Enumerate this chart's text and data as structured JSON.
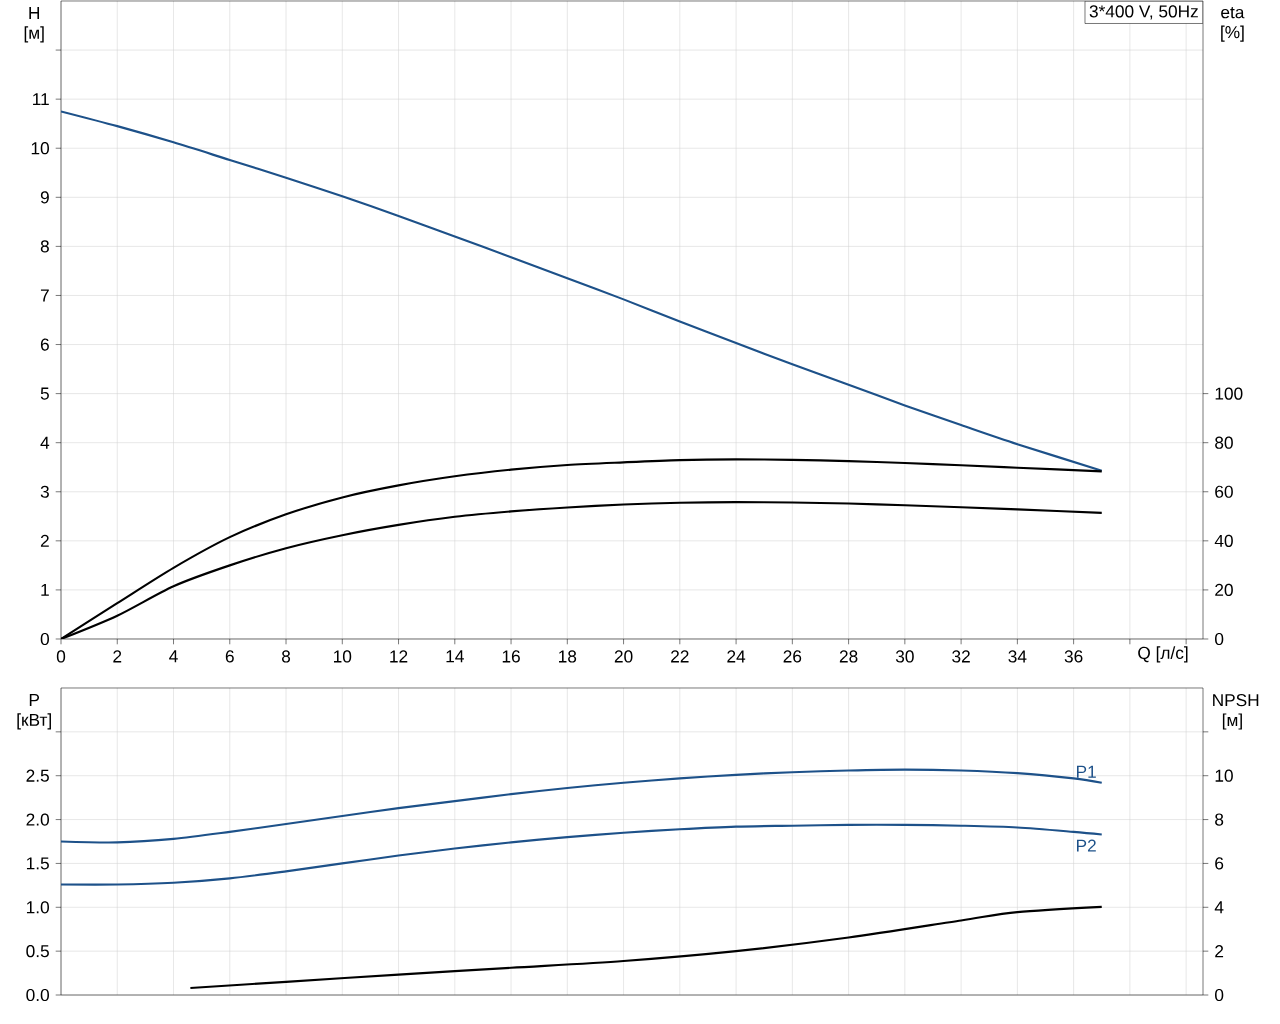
{
  "chart_data": [
    {
      "type": "line",
      "title": "3*400 V, 50Hz",
      "xlabel": "Q [л/с]",
      "ylabel": "H [м]",
      "y2label": "eta [%]",
      "xlim": [
        0,
        40.6
      ],
      "xticks": [
        0,
        2,
        4,
        6,
        8,
        10,
        12,
        14,
        16,
        18,
        20,
        22,
        24,
        26,
        28,
        30,
        32,
        34,
        36,
        {
          "value": 38,
          "label": null
        },
        {
          "value": 40,
          "label": null
        }
      ],
      "ylim": [
        0,
        13
      ],
      "yticks": [
        0,
        1,
        2,
        3,
        4,
        5,
        6,
        7,
        8,
        9,
        10,
        11,
        {
          "value": 12,
          "label": null
        }
      ],
      "y2lim": [
        0,
        260
      ],
      "y2ticks": [
        0,
        20,
        40,
        60,
        80,
        100
      ],
      "grid": true,
      "series": [
        {
          "color": "#1d5189",
          "x": [
            0,
            2,
            4,
            6,
            8,
            10,
            12,
            14,
            16,
            18,
            20,
            22,
            24,
            26,
            28,
            30,
            32,
            34,
            37
          ],
          "values": [
            10.75,
            10.45,
            10.12,
            9.76,
            9.4,
            9.02,
            8.62,
            8.2,
            7.78,
            7.35,
            6.92,
            6.47,
            6.03,
            5.6,
            5.18,
            4.76,
            4.36,
            3.97,
            3.43
          ]
        },
        {
          "color": "#000000",
          "axis": "y2",
          "x": [
            0,
            2,
            4,
            6,
            8,
            10,
            12,
            14,
            16,
            18,
            20,
            22,
            24,
            26,
            28,
            30,
            32,
            34,
            37
          ],
          "values": [
            0,
            14.6,
            29,
            41.5,
            50.8,
            57.7,
            62.6,
            66.3,
            69,
            70.9,
            72,
            72.9,
            73.2,
            73,
            72.5,
            71.7,
            70.8,
            69.8,
            68.3
          ]
        },
        {
          "color": "#000000",
          "axis": "y2",
          "x": [
            0,
            2,
            4,
            6,
            8,
            10,
            12,
            14,
            16,
            18,
            20,
            22,
            24,
            26,
            28,
            30,
            32,
            34,
            37
          ],
          "values": [
            0,
            9.5,
            21.5,
            30,
            37,
            42.3,
            46.5,
            49.8,
            52,
            53.6,
            54.8,
            55.5,
            55.8,
            55.6,
            55.2,
            54.5,
            53.7,
            52.8,
            51.4
          ]
        }
      ]
    },
    {
      "type": "line",
      "ylabel": "P [кВт]",
      "y2label": "NPSH [м]",
      "xlim": [
        0,
        40.6
      ],
      "xticks": [
        0,
        2,
        4,
        6,
        8,
        10,
        12,
        14,
        16,
        18,
        20,
        22,
        24,
        26,
        28,
        30,
        32,
        34,
        36,
        38,
        40
      ],
      "ylim": [
        0,
        3.5
      ],
      "yticks": [
        {
          "value": 0,
          "label": "0.0"
        },
        {
          "value": 0.5,
          "label": "0.5"
        },
        {
          "value": 1,
          "label": "1.0"
        },
        {
          "value": 1.5,
          "label": "1.5"
        },
        {
          "value": 2,
          "label": "2.0"
        },
        {
          "value": 2.5,
          "label": "2.5"
        },
        {
          "value": 3,
          "label": null
        }
      ],
      "y2lim": [
        0,
        14
      ],
      "y2ticks": [
        0,
        2,
        4,
        6,
        8,
        10,
        {
          "value": 12,
          "label": null
        }
      ],
      "grid": true,
      "tick_labels": "y",
      "series": [
        {
          "name": "P1",
          "color": "#1d5189",
          "x": [
            0,
            2,
            4,
            6,
            8,
            10,
            12,
            14,
            16,
            18,
            20,
            22,
            24,
            26,
            28,
            30,
            32,
            34,
            36,
            37
          ],
          "values": [
            1.75,
            1.74,
            1.78,
            1.86,
            1.95,
            2.04,
            2.13,
            2.21,
            2.29,
            2.36,
            2.42,
            2.47,
            2.51,
            2.54,
            2.56,
            2.57,
            2.56,
            2.53,
            2.47,
            2.42
          ]
        },
        {
          "name": "P2",
          "color": "#1d5189",
          "x": [
            0,
            2,
            4,
            6,
            8,
            10,
            12,
            14,
            16,
            18,
            20,
            22,
            24,
            26,
            28,
            30,
            32,
            34,
            36,
            37
          ],
          "values": [
            1.26,
            1.26,
            1.28,
            1.33,
            1.41,
            1.5,
            1.59,
            1.67,
            1.74,
            1.8,
            1.85,
            1.89,
            1.92,
            1.93,
            1.94,
            1.94,
            1.93,
            1.91,
            1.86,
            1.83
          ]
        },
        {
          "color": "#000000",
          "axis": "y2",
          "x": [
            4.6,
            8,
            12,
            16,
            20,
            24,
            28,
            32,
            34,
            37
          ],
          "values": [
            0.32,
            0.6,
            0.93,
            1.24,
            1.55,
            2.0,
            2.62,
            3.4,
            3.78,
            4.02
          ]
        }
      ]
    }
  ]
}
